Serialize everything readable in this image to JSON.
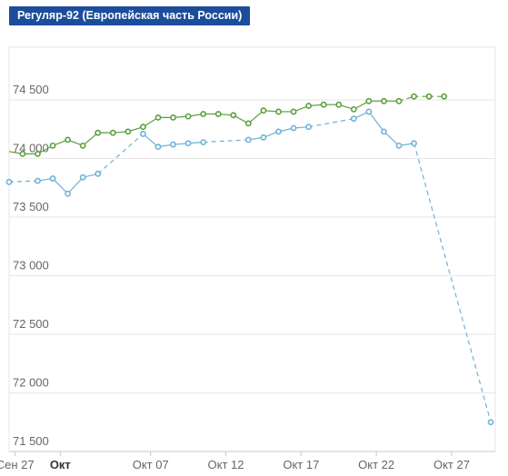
{
  "title": "Регуляр-92 (Европейская часть России)",
  "colors": {
    "badge": "#1c4d9b",
    "series_green": "#5a9e3c",
    "series_blue": "#6fb1d8",
    "grid": "#e6e6e6",
    "axis_text": "#666666"
  },
  "chart_data": {
    "type": "line",
    "title": "Регуляр-92 (Европейская часть России)",
    "xlabel": "",
    "ylabel": "",
    "ylim": [
      71500,
      74950
    ],
    "xlim": [
      -2.4,
      29.9
    ],
    "grid": "horizontal",
    "legend": "none",
    "y_ticks": [
      {
        "value": 71500,
        "label": "71 500"
      },
      {
        "value": 72000,
        "label": "72 000"
      },
      {
        "value": 72500,
        "label": "72 500"
      },
      {
        "value": 73000,
        "label": "73 000"
      },
      {
        "value": 73500,
        "label": "73 500"
      },
      {
        "value": 74000,
        "label": "74 000"
      },
      {
        "value": 74500,
        "label": "74 500"
      }
    ],
    "x_ticks": [
      {
        "day": -2,
        "label": "Сен 27",
        "bold": false
      },
      {
        "day": 1,
        "label": "Окт",
        "bold": true
      },
      {
        "day": 7,
        "label": "Окт 07",
        "bold": false
      },
      {
        "day": 12,
        "label": "Окт 12",
        "bold": false
      },
      {
        "day": 17,
        "label": "Окт 17",
        "bold": false
      },
      {
        "day": 22,
        "label": "Окт 22",
        "bold": false
      },
      {
        "day": 27,
        "label": "Окт 27",
        "bold": false
      }
    ],
    "series": [
      {
        "color": "#5a9e3c",
        "points": [
          {
            "x": -2.4,
            "y": 74060,
            "dash": false
          },
          {
            "x": -1.5,
            "y": 74040
          },
          {
            "x": -0.5,
            "y": 74040
          },
          {
            "x": 0.5,
            "y": 74110
          },
          {
            "x": 1.5,
            "y": 74160
          },
          {
            "x": 2.5,
            "y": 74110
          },
          {
            "x": 3.5,
            "y": 74220
          },
          {
            "x": 4.5,
            "y": 74220
          },
          {
            "x": 5.5,
            "y": 74230
          },
          {
            "x": 6.5,
            "y": 74270
          },
          {
            "x": 7.5,
            "y": 74350
          },
          {
            "x": 8.5,
            "y": 74350
          },
          {
            "x": 9.5,
            "y": 74360
          },
          {
            "x": 10.5,
            "y": 74380
          },
          {
            "x": 11.5,
            "y": 74380
          },
          {
            "x": 12.5,
            "y": 74370
          },
          {
            "x": 13.5,
            "y": 74300
          },
          {
            "x": 14.5,
            "y": 74410
          },
          {
            "x": 15.5,
            "y": 74400
          },
          {
            "x": 16.5,
            "y": 74400
          },
          {
            "x": 17.5,
            "y": 74450
          },
          {
            "x": 18.5,
            "y": 74460
          },
          {
            "x": 19.5,
            "y": 74460
          },
          {
            "x": 20.5,
            "y": 74420
          },
          {
            "x": 21.5,
            "y": 74490
          },
          {
            "x": 22.5,
            "y": 74490
          },
          {
            "x": 23.5,
            "y": 74490
          },
          {
            "x": 24.5,
            "y": 74530,
            "dash": true
          },
          {
            "x": 25.5,
            "y": 74530,
            "dash": true
          },
          {
            "x": 26.5,
            "y": 74530,
            "dash": true
          }
        ]
      },
      {
        "color": "#6fb1d8",
        "points": [
          {
            "x": -2.4,
            "y": 73800,
            "dash": true
          },
          {
            "x": -0.5,
            "y": 73810,
            "dash": true
          },
          {
            "x": 0.5,
            "y": 73830
          },
          {
            "x": 1.5,
            "y": 73700
          },
          {
            "x": 2.5,
            "y": 73840
          },
          {
            "x": 3.5,
            "y": 73870
          },
          {
            "x": 6.5,
            "y": 74210,
            "dash": true
          },
          {
            "x": 7.5,
            "y": 74100
          },
          {
            "x": 8.5,
            "y": 74120
          },
          {
            "x": 9.5,
            "y": 74130
          },
          {
            "x": 10.5,
            "y": 74140
          },
          {
            "x": 13.5,
            "y": 74160,
            "dash": true
          },
          {
            "x": 14.5,
            "y": 74180
          },
          {
            "x": 15.5,
            "y": 74230
          },
          {
            "x": 16.5,
            "y": 74260
          },
          {
            "x": 17.5,
            "y": 74270
          },
          {
            "x": 20.5,
            "y": 74340,
            "dash": true
          },
          {
            "x": 21.5,
            "y": 74400
          },
          {
            "x": 22.5,
            "y": 74230
          },
          {
            "x": 23.5,
            "y": 74110
          },
          {
            "x": 24.5,
            "y": 74130
          },
          {
            "x": 29.6,
            "y": 71750,
            "dash": true
          }
        ]
      }
    ]
  }
}
